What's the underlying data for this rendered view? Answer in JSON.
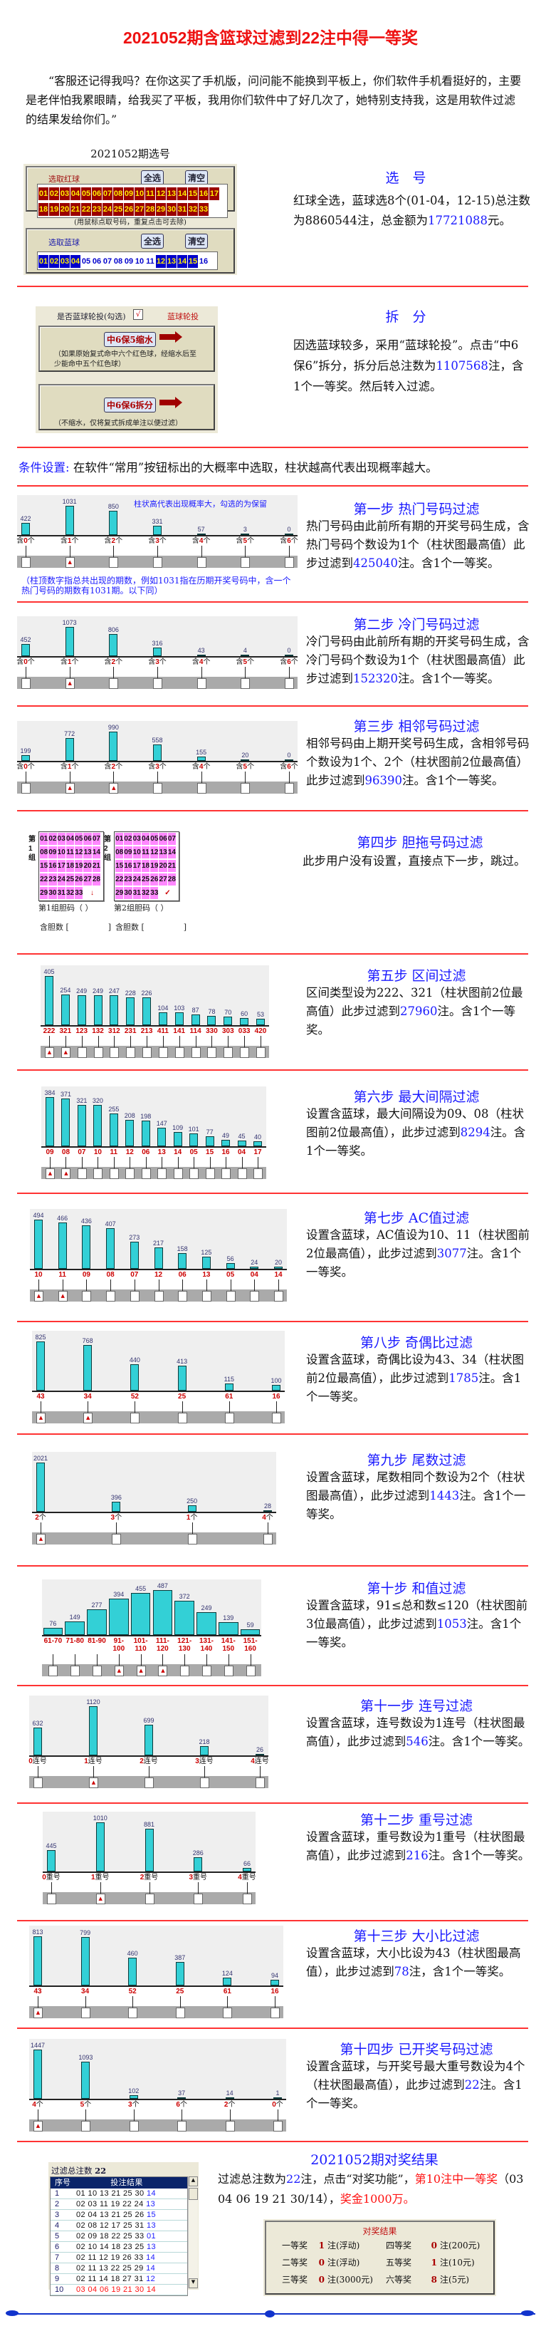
{
  "title": "2021052期含篮球过滤到22注中得一等奖",
  "quote": "“客服还记得我吗？在你这买了手机版，问问能不能换到平板上，你们软件手机看挺好的，主要是老伴怕我累眼睛，给我买了平板，我用你们软件中了好几次了，她特别支持我，这是用软件过滤的结果发给你们。”",
  "selection": {
    "caption": "2021052期选号",
    "red_label": "选取红球",
    "blue_label": "选取蓝球",
    "select_all": "全选",
    "clear": "清空",
    "hint": "(用鼠标点取号码，重复点击可去除)",
    "red_numbers": [
      "01",
      "02",
      "03",
      "04",
      "05",
      "06",
      "07",
      "08",
      "09",
      "10",
      "11",
      "12",
      "13",
      "14",
      "15",
      "16",
      "17",
      "18",
      "19",
      "20",
      "21",
      "22",
      "23",
      "24",
      "25",
      "26",
      "27",
      "28",
      "29",
      "30",
      "31",
      "32",
      "33"
    ],
    "blue_numbers": [
      "01",
      "02",
      "03",
      "04",
      "05",
      "06",
      "07",
      "08",
      "09",
      "10",
      "11",
      "12",
      "13",
      "14",
      "15",
      "16"
    ],
    "blue_selected": [
      "01",
      "02",
      "03",
      "04",
      "12",
      "13",
      "14",
      "15"
    ],
    "heading": "选　号",
    "text": [
      "红球全选，蓝球选8个(01-04，12-15)总注数为8860544注，总金额为",
      "17721088",
      "元。"
    ]
  },
  "split": {
    "rotate_label": "是否蓝球轮投(勾选)",
    "rotate_check": "√",
    "rotate_title": "蓝球轮投",
    "btn_reduce": "中6保5缩水",
    "reduce_note": "（如果原始复式命中六个红色球，经缩水后至少能命中五个红色球）",
    "btn_split": "中6保6拆分",
    "split_note": "（不缩水，仅将复式拆成单注以便过滤）",
    "heading": "拆　分",
    "text": [
      "因选蓝球较多，采用“蓝球轮投”。点击“中6保6”拆分，拆分后总注数为",
      "1107568",
      "注，含1个一等奖。然后转入过滤。"
    ]
  },
  "conditions": {
    "label": "条件设置:",
    "text": "在软件“常用”按钮标出的大概率中选取，柱状越高代表出现概率越大。"
  },
  "step1_notes": {
    "top": "柱状高代表出现概率大，勾选的为保留",
    "bottom": "（柱顶数字指总共出现的期数，例如1031指在历期开奖号码中，含一个热门号码的期数有1031期。以下同）"
  },
  "step4": {
    "heading": "第四步 胆拖号码过滤",
    "text": "此步用户没有设置，直接点下一步，跳过。",
    "groups": [
      {
        "side": "第1组",
        "label": "第1组胆码（ ）",
        "count": "含胆数 [　　　　　]",
        "mark": "↓"
      },
      {
        "side": "第2组",
        "label": "第2组胆码（ ）",
        "count": "含胆数 [　　　　　]",
        "mark": "✓"
      }
    ]
  },
  "steps": [
    {
      "heading": "第一步 热门号码过滤",
      "text": [
        "热门号码由此前所有期的开奖号码生成，含热门号码个数设为1个（柱状图最高值）此步过滤到",
        "425040",
        "注。含1个一等奖。"
      ],
      "chart": {
        "type": "bar",
        "prefix": "含",
        "suffix": "个",
        "categories": [
          "0",
          "1",
          "2",
          "3",
          "4",
          "5",
          "6"
        ],
        "values": [
          422,
          1031,
          850,
          331,
          57,
          3,
          0
        ],
        "selected": [
          false,
          true,
          false,
          false,
          false,
          false,
          false
        ]
      }
    },
    {
      "heading": "第二步 冷门号码过滤",
      "text": [
        "冷门号码由此前所有期的开奖号码生成，含冷门号码个数设为1个（柱状图最高值）此步过滤到",
        "152320",
        "注。含1个一等奖。"
      ],
      "chart": {
        "type": "bar",
        "prefix": "含",
        "suffix": "个",
        "categories": [
          "0",
          "1",
          "2",
          "3",
          "4",
          "5",
          "6"
        ],
        "values": [
          452,
          1073,
          806,
          316,
          43,
          4,
          0
        ],
        "selected": [
          false,
          true,
          false,
          false,
          false,
          false,
          false
        ]
      }
    },
    {
      "heading": "第三步 相邻号码过滤",
      "text": [
        "相邻号码由上期开奖号码生成，含相邻号码个数设为1个、2个（柱状图前2位最高值）此步过滤到",
        "96390",
        "注。含1个一等奖。"
      ],
      "chart": {
        "type": "bar",
        "prefix": "含",
        "suffix": "个",
        "categories": [
          "0",
          "1",
          "2",
          "3",
          "4",
          "5",
          "6"
        ],
        "values": [
          199,
          772,
          990,
          558,
          155,
          20,
          0
        ],
        "selected": [
          false,
          true,
          true,
          false,
          false,
          false,
          false
        ]
      }
    },
    {
      "heading": "第五步 区间过滤",
      "text": [
        "区间类型设为222、321（柱状图前2位最高值）此步过滤到",
        "27960",
        "注。含1个一等奖。"
      ],
      "chart": {
        "type": "bar",
        "prefix": "",
        "suffix": "",
        "categories": [
          "222",
          "321",
          "123",
          "132",
          "312",
          "231",
          "213",
          "411",
          "141",
          "114",
          "330",
          "303",
          "033",
          "420"
        ],
        "values": [
          405,
          254,
          249,
          249,
          247,
          228,
          226,
          104,
          103,
          87,
          78,
          70,
          60,
          53
        ],
        "selected": [
          true,
          true,
          false,
          false,
          false,
          false,
          false,
          false,
          false,
          false,
          false,
          false,
          false,
          false
        ]
      }
    },
    {
      "heading": "第六步 最大间隔过滤",
      "text": [
        "设置含蓝球，最大间隔设为09、08（柱状图前2位最高值），此步过滤到",
        "8294",
        "注。含1个一等奖。"
      ],
      "chart": {
        "type": "bar",
        "prefix": "",
        "suffix": "",
        "categories": [
          "09",
          "08",
          "07",
          "10",
          "11",
          "12",
          "06",
          "13",
          "14",
          "05",
          "15",
          "16",
          "04",
          "17"
        ],
        "values": [
          384,
          371,
          321,
          320,
          255,
          208,
          198,
          147,
          109,
          101,
          77,
          49,
          45,
          40
        ],
        "selected": [
          true,
          true,
          false,
          false,
          false,
          false,
          false,
          false,
          false,
          false,
          false,
          false,
          false,
          false
        ]
      }
    },
    {
      "heading": "第七步 AC值过滤",
      "text": [
        "设置含蓝球，AC值设为10、11（柱状图前2位最高值），此步过滤到",
        "3077",
        "注。含1个一等奖。"
      ],
      "chart": {
        "type": "bar",
        "prefix": "",
        "suffix": "",
        "categories": [
          "10",
          "11",
          "09",
          "08",
          "07",
          "12",
          "06",
          "13",
          "05",
          "04",
          "14"
        ],
        "values": [
          494,
          466,
          436,
          407,
          273,
          217,
          158,
          125,
          56,
          24,
          20
        ],
        "selected": [
          true,
          true,
          false,
          false,
          false,
          false,
          false,
          false,
          false,
          false,
          false
        ]
      }
    },
    {
      "heading": "第八步 奇偶比过滤",
      "text": [
        "设置含蓝球，奇偶比设为43、34（柱状图前2位最高值），此步过滤到",
        "1785",
        "注。含1个一等奖。"
      ],
      "chart": {
        "type": "bar",
        "prefix": "",
        "suffix": "",
        "categories": [
          "43",
          "34",
          "52",
          "25",
          "61",
          "16"
        ],
        "values": [
          825,
          768,
          440,
          413,
          115,
          100
        ],
        "selected": [
          true,
          true,
          false,
          false,
          false,
          false
        ]
      }
    },
    {
      "heading": "第九步 尾数过滤",
      "text": [
        "设置含蓝球，尾数相同个数设为2个（柱状图最高值），此步过滤到",
        "1443",
        "注。含1个一等奖。"
      ],
      "chart": {
        "type": "bar",
        "prefix": "",
        "suffix": "个",
        "categories": [
          "2",
          "3",
          "1",
          "4"
        ],
        "values": [
          2021,
          396,
          250,
          28
        ],
        "selected": [
          true,
          false,
          false,
          false
        ]
      }
    },
    {
      "heading": "第十步 和值过滤",
      "text": [
        "设置含蓝球，91≤总和数≤120（柱状图前3位最高值），此步过滤到",
        "1053",
        "注。含1个一等奖。"
      ],
      "chart": {
        "type": "bar",
        "prefix": "",
        "suffix": "",
        "categories": [
          "61-70",
          "71-80",
          "81-90",
          "91-100",
          "101-110",
          "111-120",
          "121-130",
          "131-140",
          "141-150",
          "151-160"
        ],
        "values": [
          76,
          149,
          277,
          394,
          455,
          487,
          372,
          249,
          139,
          59
        ],
        "selected": [
          false,
          false,
          false,
          true,
          true,
          true,
          false,
          false,
          false,
          false
        ]
      }
    },
    {
      "heading": "第十一步 连号过滤",
      "text": [
        "设置含蓝球，连号数设为1连号（柱状图最高值），此步过滤到",
        "546",
        "注。含1个一等奖。"
      ],
      "chart": {
        "type": "bar",
        "prefix": "",
        "suffix": "连号",
        "categories": [
          "0",
          "1",
          "2",
          "3",
          "4"
        ],
        "values": [
          632,
          1120,
          699,
          218,
          26
        ],
        "selected": [
          false,
          true,
          false,
          false,
          false
        ]
      }
    },
    {
      "heading": "第十二步 重号过滤",
      "text": [
        "设置含蓝球，重号数设为1重号（柱状图最高值），此步过滤到",
        "216",
        "注。含1个一等奖。"
      ],
      "chart": {
        "type": "bar",
        "prefix": "",
        "suffix": "重号",
        "categories": [
          "0",
          "1",
          "2",
          "3",
          "4"
        ],
        "values": [
          445,
          1010,
          881,
          286,
          66
        ],
        "selected": [
          false,
          true,
          false,
          false,
          false
        ]
      }
    },
    {
      "heading": "第十三步 大小比过滤",
      "text": [
        "设置含蓝球，大小比设为43（柱状图最高值），此步过滤到",
        "78",
        "注，含1个一等奖。"
      ],
      "chart": {
        "type": "bar",
        "prefix": "",
        "suffix": "",
        "categories": [
          "43",
          "34",
          "52",
          "25",
          "61",
          "16"
        ],
        "values": [
          813,
          799,
          460,
          387,
          124,
          94
        ],
        "selected": [
          true,
          false,
          false,
          false,
          false,
          false
        ]
      }
    },
    {
      "heading": "第十四步 已开奖号码过滤",
      "text": [
        "设置含蓝球，与开奖号最大重号数设为4个（柱状图最高值），此步过滤到",
        "22",
        "注。含1个一等奖。"
      ],
      "chart": {
        "type": "bar",
        "prefix": "",
        "suffix": "个",
        "categories": [
          "4",
          "5",
          "3",
          "6",
          "2",
          "0"
        ],
        "values": [
          1447,
          1093,
          102,
          37,
          14,
          1
        ],
        "selected": [
          true,
          false,
          false,
          false,
          false,
          false
        ]
      }
    }
  ],
  "result": {
    "heading": "2021052期对奖结果",
    "text": [
      "过滤总注数为",
      "22",
      "注，点击“对奖功能”，",
      "第10注中一等奖",
      "（03 04 06 19 21 30/14），",
      "奖金1000万。"
    ],
    "total_label": "过滤总注数",
    "total_value": "22",
    "col_index": "序号",
    "col_result": "投注结果",
    "rows": [
      {
        "idx": "1",
        "red": "01 10 13 21 25 30",
        "blue": "14",
        "win": false
      },
      {
        "idx": "2",
        "red": "02 03 11 19 22 24",
        "blue": "13",
        "win": false
      },
      {
        "idx": "3",
        "red": "02 04 13 21 25 26",
        "blue": "15",
        "win": false
      },
      {
        "idx": "4",
        "red": "02 08 12 17 25 31",
        "blue": "13",
        "win": false
      },
      {
        "idx": "5",
        "red": "02 09 18 22 25 33",
        "blue": "01",
        "win": false
      },
      {
        "idx": "6",
        "red": "02 10 14 18 23 25",
        "blue": "13",
        "win": false
      },
      {
        "idx": "7",
        "red": "02 11 12 19 26 33",
        "blue": "14",
        "win": false
      },
      {
        "idx": "8",
        "red": "02 11 13 22 25 29",
        "blue": "14",
        "win": false
      },
      {
        "idx": "9",
        "red": "02 11 14 18 27 31",
        "blue": "12",
        "win": false
      },
      {
        "idx": "10",
        "red": "03 04 06 19 21 30",
        "blue": "14",
        "win": true
      }
    ],
    "prize_title": "对奖结果",
    "prizes": [
      {
        "name": "一等奖",
        "count": "1",
        "unit": "注(浮动)"
      },
      {
        "name": "四等奖",
        "count": "0",
        "unit": "注(200元)"
      },
      {
        "name": "二等奖",
        "count": "0",
        "unit": "注(浮动)"
      },
      {
        "name": "五等奖",
        "count": "1",
        "unit": "注(10元)"
      },
      {
        "name": "三等奖",
        "count": "0",
        "unit": "注(3000元)"
      },
      {
        "name": "六等奖",
        "count": "8",
        "unit": "注(5元)"
      }
    ]
  },
  "colors": {
    "accent_red": "#ee1111",
    "heading_blue": "#1a1aff",
    "bar": "#33d0d6",
    "red_ball": "#9b0000",
    "blue_ball": "#0000cc"
  }
}
